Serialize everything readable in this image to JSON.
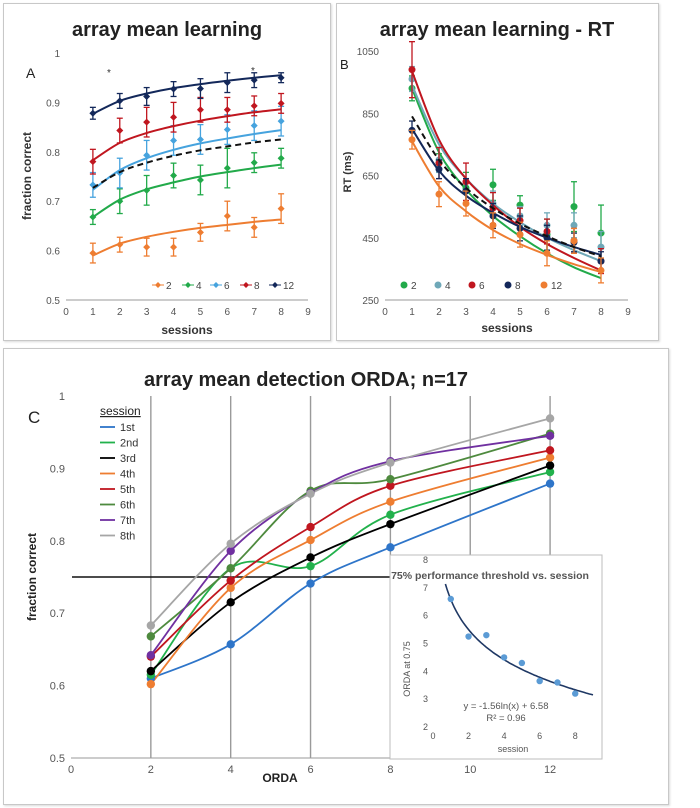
{
  "chart_data": [
    {
      "type": "line",
      "panel_letter": "A",
      "title": "array mean learning",
      "xlabel": "sessions",
      "ylabel": "fraction correct",
      "xlim": [
        0,
        9
      ],
      "ylim": [
        0.5,
        1
      ],
      "xticks": [
        "0",
        "1",
        "2",
        "3",
        "4",
        "5",
        "6",
        "7",
        "8",
        "9"
      ],
      "yticks": [
        "0.5",
        "0.6",
        "0.7",
        "0.8",
        "0.9",
        "1"
      ],
      "markers": [
        "*",
        "*"
      ],
      "x": [
        1,
        2,
        3,
        4,
        5,
        6,
        7,
        8
      ],
      "series": [
        {
          "name": "2",
          "color": "#ee7d31",
          "values": [
            0.595,
            0.612,
            0.607,
            0.607,
            0.637,
            0.67,
            0.647,
            0.685
          ],
          "err": [
            0.02,
            0.015,
            0.018,
            0.018,
            0.018,
            0.03,
            0.02,
            0.03
          ],
          "fit": [
            0.59,
            0.614,
            0.628,
            0.638,
            0.646,
            0.652,
            0.658,
            0.663
          ]
        },
        {
          "name": "4",
          "color": "#22aa4a",
          "values": [
            0.668,
            0.7,
            0.722,
            0.752,
            0.743,
            0.767,
            0.778,
            0.787
          ],
          "err": [
            0.015,
            0.025,
            0.03,
            0.025,
            0.03,
            0.04,
            0.02,
            0.02
          ],
          "fit": [
            0.668,
            0.703,
            0.724,
            0.738,
            0.75,
            0.759,
            0.767,
            0.774
          ]
        },
        {
          "name": "6",
          "color": "#46a3de",
          "values": [
            0.733,
            0.757,
            0.793,
            0.823,
            0.825,
            0.845,
            0.853,
            0.862
          ],
          "err": [
            0.025,
            0.03,
            0.03,
            0.03,
            0.03,
            0.03,
            0.03,
            0.03
          ],
          "fit": [
            0.723,
            0.763,
            0.787,
            0.804,
            0.817,
            0.827,
            0.836,
            0.844
          ]
        },
        {
          "name": "8",
          "color": "#c0161f",
          "values": [
            0.78,
            0.843,
            0.86,
            0.87,
            0.885,
            0.885,
            0.893,
            0.898
          ],
          "err": [
            0.025,
            0.025,
            0.03,
            0.03,
            0.025,
            0.025,
            0.02,
            0.02
          ],
          "fit": [
            0.783,
            0.818,
            0.838,
            0.852,
            0.863,
            0.872,
            0.88,
            0.886
          ]
        },
        {
          "name": "12",
          "color": "#13285a",
          "values": [
            0.878,
            0.903,
            0.912,
            0.927,
            0.928,
            0.94,
            0.945,
            0.95
          ],
          "err": [
            0.012,
            0.015,
            0.018,
            0.015,
            0.02,
            0.02,
            0.015,
            0.01
          ],
          "fit": [
            0.877,
            0.903,
            0.918,
            0.929,
            0.937,
            0.944,
            0.95,
            0.955
          ]
        },
        {
          "name": "mean",
          "color": "#111111",
          "dashed": true,
          "fit": [
            0.727,
            0.759,
            0.778,
            0.792,
            0.803,
            0.811,
            0.819,
            0.825
          ]
        }
      ]
    },
    {
      "type": "line",
      "panel_letter": "B",
      "title": "array mean learning - RT",
      "xlabel": "sessions",
      "ylabel": "RT (ms)",
      "xlim": [
        0,
        9
      ],
      "ylim": [
        250,
        1050
      ],
      "xticks": [
        "0",
        "1",
        "2",
        "3",
        "4",
        "5",
        "6",
        "7",
        "8",
        "9"
      ],
      "yticks": [
        "250",
        "450",
        "650",
        "850",
        "1050"
      ],
      "x": [
        1,
        2,
        3,
        4,
        5,
        6,
        7,
        8
      ],
      "series": [
        {
          "name": "2",
          "color": "#22aa4a",
          "values": [
            930,
            690,
            610,
            620,
            555,
            460,
            550,
            465
          ],
          "err": [
            40,
            30,
            50,
            50,
            30,
            50,
            80,
            90
          ],
          "fit": [
            930,
            725,
            605,
            520,
            455,
            400,
            355,
            320
          ]
        },
        {
          "name": "4",
          "color": "#6fa8b8",
          "values": [
            960,
            700,
            600,
            560,
            520,
            490,
            490,
            420
          ],
          "err": [
            40,
            40,
            40,
            40,
            30,
            40,
            40,
            50
          ],
          "fit": [
            940,
            750,
            640,
            560,
            500,
            450,
            410,
            375
          ]
        },
        {
          "name": "6",
          "color": "#c0161f",
          "values": [
            990,
            690,
            630,
            545,
            505,
            470,
            440,
            375
          ],
          "err": [
            90,
            50,
            60,
            50,
            40,
            40,
            40,
            40
          ],
          "fit": [
            985,
            765,
            640,
            555,
            485,
            430,
            385,
            345
          ]
        },
        {
          "name": "8",
          "color": "#13285a",
          "values": [
            795,
            670,
            600,
            520,
            480,
            450,
            435,
            375
          ],
          "err": [
            30,
            30,
            40,
            40,
            40,
            40,
            30,
            30
          ],
          "fit": [
            800,
            665,
            585,
            530,
            485,
            450,
            420,
            395
          ]
        },
        {
          "name": "12",
          "color": "#ee7d31",
          "values": [
            765,
            590,
            560,
            490,
            460,
            400,
            440,
            345
          ],
          "err": [
            30,
            40,
            40,
            40,
            40,
            40,
            40,
            40
          ],
          "fit": [
            760,
            615,
            535,
            475,
            430,
            395,
            365,
            340
          ]
        },
        {
          "name": "mean",
          "color": "#111111",
          "dashed": true,
          "fit": [
            840,
            700,
            610,
            545,
            495,
            455,
            420,
            390
          ]
        }
      ]
    },
    {
      "type": "line",
      "panel_letter": "C",
      "title": "array mean detection ORDA; n=17",
      "xlabel": "ORDA",
      "ylabel": "fraction correct",
      "xlim": [
        0,
        13
      ],
      "ylim": [
        0.5,
        1
      ],
      "xticks": [
        "0",
        "2",
        "4",
        "6",
        "8",
        "10",
        "12"
      ],
      "yticks": [
        "0.5",
        "0.6",
        "0.7",
        "0.8",
        "0.9",
        "1"
      ],
      "legend_title": "session",
      "threshold": 0.75,
      "x": [
        2,
        4,
        6,
        8,
        12
      ],
      "series": [
        {
          "name": "1st",
          "color": "#2e75c9",
          "values": [
            0.61,
            0.657,
            0.741,
            0.791,
            0.879
          ]
        },
        {
          "name": "2nd",
          "color": "#22b14c",
          "values": [
            0.615,
            0.762,
            0.765,
            0.836,
            0.895
          ]
        },
        {
          "name": "3rd",
          "color": "#000000",
          "values": [
            0.62,
            0.715,
            0.777,
            0.823,
            0.904
          ]
        },
        {
          "name": "4th",
          "color": "#ee7d31",
          "values": [
            0.602,
            0.735,
            0.801,
            0.854,
            0.915
          ]
        },
        {
          "name": "5th",
          "color": "#c0161f",
          "values": [
            0.64,
            0.745,
            0.819,
            0.876,
            0.925
          ]
        },
        {
          "name": "6th",
          "color": "#4e8a3e",
          "values": [
            0.668,
            0.762,
            0.869,
            0.885,
            0.948
          ]
        },
        {
          "name": "7th",
          "color": "#7030a0",
          "values": [
            0.642,
            0.786,
            0.866,
            0.91,
            0.945
          ]
        },
        {
          "name": "8th",
          "color": "#a6a6a6",
          "values": [
            0.683,
            0.796,
            0.865,
            0.908,
            0.969
          ]
        }
      ],
      "inset": {
        "type": "scatter",
        "title": "75% performance threshold vs. session",
        "xlabel": "session",
        "ylabel": "ORDA at 0.75",
        "xlim": [
          0,
          9
        ],
        "ylim": [
          2,
          8
        ],
        "xticks": [
          "0",
          "2",
          "4",
          "6",
          "8"
        ],
        "yticks": [
          "2",
          "3",
          "4",
          "5",
          "6",
          "7",
          "8"
        ],
        "x": [
          1,
          2,
          3,
          4,
          5,
          6,
          7,
          8
        ],
        "values": [
          6.6,
          5.25,
          5.3,
          4.5,
          4.3,
          3.65,
          3.6,
          3.2
        ],
        "fit_label": "y = -1.56ln(x) + 6.58",
        "r2_label": "R² = 0.96",
        "fit": {
          "a": -1.56,
          "b": 6.58
        },
        "color": "#5b9bd5",
        "fit_color": "#1f3864"
      }
    }
  ]
}
